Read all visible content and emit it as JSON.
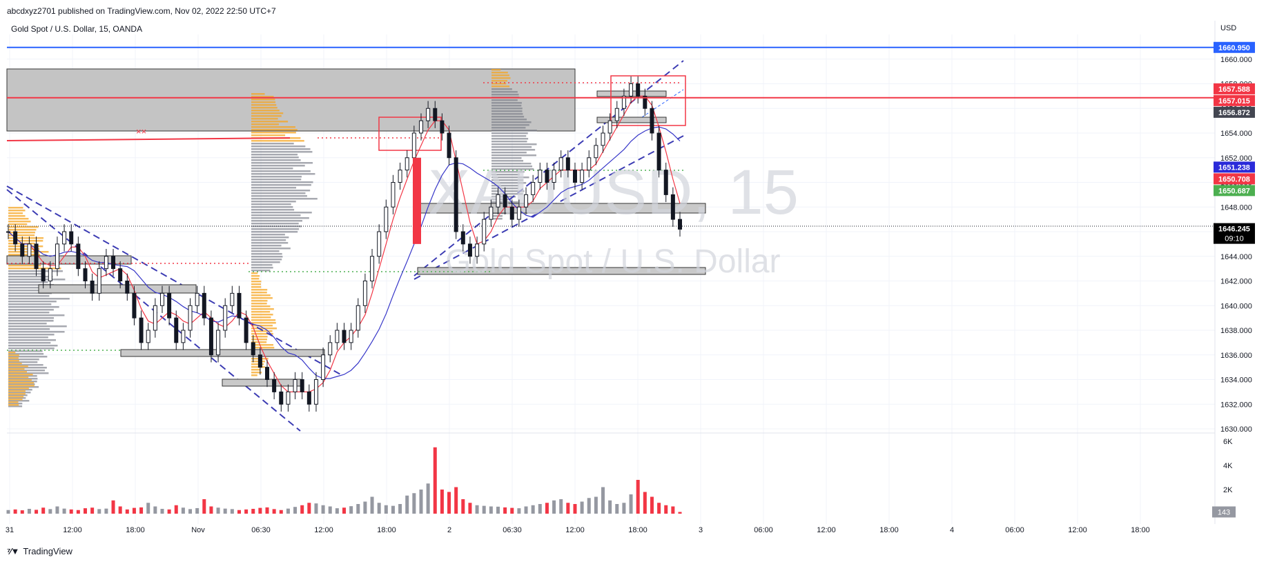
{
  "header": {
    "published": "abcdxyz2701 published on TradingView.com, Nov 02, 2022 22:50 UTC+7"
  },
  "symbol_line": "Gold Spot / U.S. Dollar, 15, OANDA",
  "footer": {
    "brand": "TradingView"
  },
  "watermark": {
    "ticker": "XAUUSD, 15",
    "name": "Gold Spot / U.S. Dollar"
  },
  "colors": {
    "blue_line": "#2962ff",
    "red_line": "#f23645",
    "up_volume": "#9598a1",
    "down_volume": "#f23645",
    "profile_orange": "#f5a623",
    "profile_grey": "#787b86",
    "zone_grey": "#b2b5be"
  },
  "chart_data": {
    "type": "line",
    "currency": "USD",
    "ylim": [
      1630,
      1662
    ],
    "y_ticks": [
      "1660.000",
      "1658.000",
      "1656.000",
      "1654.000",
      "1652.000",
      "1650.000",
      "1648.000",
      "1646.000",
      "1644.000",
      "1642.000",
      "1640.000",
      "1638.000",
      "1636.000",
      "1634.000",
      "1632.000",
      "1630.000"
    ],
    "x_ticks": [
      "31",
      "12:00",
      "18:00",
      "Nov",
      "06:30",
      "12:00",
      "18:00",
      "2",
      "06:30",
      "12:00",
      "18:00",
      "3",
      "06:00",
      "12:00",
      "18:00",
      "4",
      "06:00",
      "12:00",
      "18:00"
    ],
    "price_labels": [
      {
        "value": 1660.95,
        "text": "1660.950",
        "color": "#2962ff"
      },
      {
        "value": 1657.588,
        "text": "1657.588",
        "color": "#f23645"
      },
      {
        "value": 1657.015,
        "text": "1657.015",
        "color": "#f23645"
      },
      {
        "value": 1656.872,
        "text": "1656.872",
        "color": "#434651"
      },
      {
        "value": 1651.238,
        "text": "1651.238",
        "color": "#2b2bd9"
      },
      {
        "value": 1650.708,
        "text": "1650.708",
        "color": "#f23645"
      },
      {
        "value": 1650.687,
        "text": "1650.687",
        "color": "#4caf50"
      },
      {
        "value": 1646.245,
        "text": "1646.245",
        "color": "#000000",
        "countdown": "09:10"
      }
    ],
    "horizontal_lines": [
      {
        "value": 1660.95,
        "color": "#2962ff"
      },
      {
        "value": 1656.87,
        "color": "#f23645"
      }
    ],
    "series": [
      {
        "values": [
          1646,
          1645,
          1644,
          1645,
          1643,
          1642,
          1643,
          1645,
          1646,
          1645,
          1643,
          1642,
          1641,
          1643,
          1644,
          1643,
          1642,
          1641,
          1639,
          1637,
          1638,
          1640,
          1641,
          1639,
          1637,
          1638,
          1640,
          1641,
          1639,
          1636,
          1638,
          1640,
          1641,
          1639,
          1637,
          1636,
          1635,
          1634,
          1633,
          1632,
          1633,
          1634,
          1633,
          1632,
          1634,
          1636,
          1637,
          1638,
          1637,
          1638,
          1640,
          1642,
          1644,
          1646,
          1648,
          1650,
          1651,
          1652,
          1654,
          1655,
          1656,
          1655,
          1654,
          1652,
          1646,
          1645,
          1644,
          1645,
          1647,
          1648,
          1649,
          1648,
          1647,
          1648,
          1649,
          1650,
          1651,
          1650,
          1651,
          1652,
          1651,
          1650,
          1651,
          1652,
          1653,
          1654,
          1655,
          1656,
          1657,
          1658,
          1657,
          1656,
          1654,
          1651,
          1649,
          1647,
          1646.2
        ]
      }
    ],
    "volume": {
      "ylim": [
        0,
        6000
      ],
      "y_ticks": [
        "6K",
        "4K",
        "2K"
      ],
      "last": "143",
      "values": [
        300,
        350,
        280,
        400,
        320,
        500,
        380,
        600,
        420,
        350,
        300,
        450,
        500,
        380,
        420,
        1100,
        600,
        350,
        480,
        520,
        900,
        600,
        400,
        350,
        700,
        500,
        380,
        460,
        1200,
        600,
        500,
        420,
        380,
        300,
        350,
        400,
        480,
        520,
        380,
        300,
        420,
        560,
        700,
        900,
        850,
        700,
        600,
        450,
        500,
        620,
        800,
        1000,
        1400,
        900,
        700,
        650,
        800,
        1500,
        1700,
        2000,
        2500,
        5500,
        2000,
        1800,
        2200,
        1200,
        900,
        700,
        650,
        600,
        580,
        520,
        480,
        450,
        600,
        700,
        800,
        900,
        1100,
        1200,
        900,
        800,
        1000,
        1300,
        1400,
        2200,
        1100,
        800,
        900,
        1600,
        2800,
        1800,
        1400,
        900,
        700,
        600,
        143
      ]
    }
  }
}
